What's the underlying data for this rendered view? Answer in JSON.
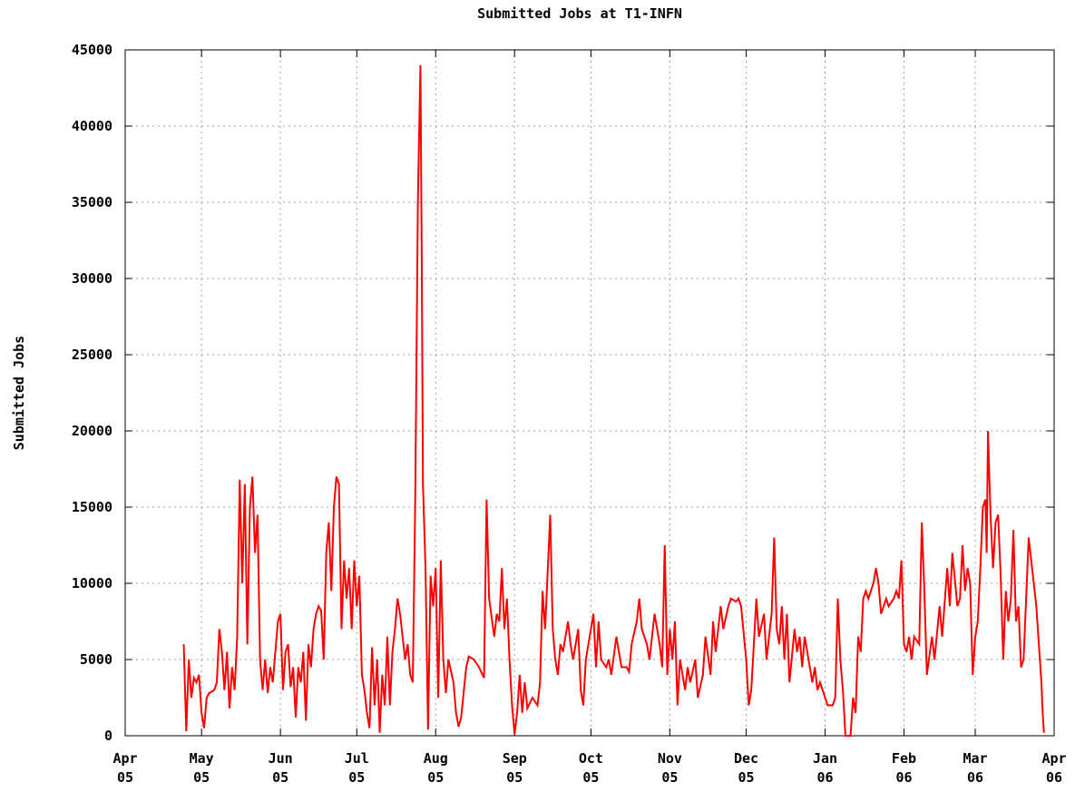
{
  "chart_data": {
    "type": "line",
    "title": "Submitted Jobs at T1-INFN",
    "y_label": "Submitted Jobs",
    "grid": true,
    "xlim": [
      0,
      365
    ],
    "xticks": [
      {
        "value": 0,
        "label": "Apr\n05"
      },
      {
        "value": 30,
        "label": "May\n05"
      },
      {
        "value": 61,
        "label": "Jun\n05"
      },
      {
        "value": 91,
        "label": "Jul\n05"
      },
      {
        "value": 122,
        "label": "Aug\n05"
      },
      {
        "value": 153,
        "label": "Sep\n05"
      },
      {
        "value": 183,
        "label": "Oct\n05"
      },
      {
        "value": 214,
        "label": "Nov\n05"
      },
      {
        "value": 244,
        "label": "Dec\n05"
      },
      {
        "value": 275,
        "label": "Jan\n06"
      },
      {
        "value": 306,
        "label": "Feb\n06"
      },
      {
        "value": 334,
        "label": "Mar\n06"
      },
      {
        "value": 365,
        "label": "Apr\n06"
      }
    ],
    "ylim": [
      0,
      45000
    ],
    "yticks": [
      0,
      5000,
      10000,
      15000,
      20000,
      25000,
      30000,
      35000,
      40000,
      45000
    ],
    "x": [
      23,
      24,
      25,
      26,
      27,
      28,
      29,
      30,
      31,
      32,
      33,
      35,
      36,
      37,
      38,
      39,
      40,
      41,
      42,
      43,
      44,
      45,
      46,
      47,
      48,
      49,
      50,
      51,
      52,
      53,
      54,
      55,
      56,
      57,
      58,
      59,
      60,
      61,
      62,
      63,
      64,
      65,
      66,
      67,
      68,
      69,
      70,
      71,
      72,
      73,
      74,
      75,
      76,
      77,
      78,
      79,
      80,
      81,
      82,
      83,
      84,
      85,
      86,
      87,
      88,
      89,
      90,
      91,
      92,
      93,
      94,
      95,
      96,
      97,
      98,
      99,
      100,
      101,
      102,
      103,
      104,
      105,
      106,
      107,
      108,
      110,
      111,
      112,
      113,
      114,
      115,
      116,
      116.5,
      117,
      118,
      119,
      120,
      121,
      122,
      123,
      124,
      125,
      126,
      127,
      129,
      130,
      131,
      132,
      134,
      135,
      137,
      139,
      141,
      142,
      143,
      145,
      146,
      147,
      148,
      149,
      150,
      151,
      152,
      153,
      154,
      155,
      156,
      157,
      158,
      160,
      162,
      163,
      164,
      165,
      167,
      168,
      169,
      170,
      171,
      172,
      174,
      175,
      176,
      178,
      179,
      180,
      181,
      182,
      184,
      185,
      186,
      187,
      189,
      190,
      191,
      193,
      194,
      195,
      197,
      198,
      199,
      201,
      202,
      203,
      205,
      206,
      208,
      210,
      211,
      212,
      213,
      214,
      215,
      216,
      217,
      218,
      220,
      221,
      222,
      224,
      225,
      227,
      228,
      230,
      231,
      232,
      234,
      235,
      237,
      238,
      240,
      241,
      242,
      244,
      245,
      246,
      248,
      249,
      251,
      252,
      254,
      255,
      256,
      257,
      258,
      259,
      260,
      261,
      263,
      264,
      265,
      266,
      267,
      268,
      270,
      271,
      272,
      273,
      275,
      276,
      278,
      279,
      280,
      281,
      282,
      283,
      285,
      286,
      287,
      288,
      289,
      290,
      291,
      292,
      294,
      295,
      296,
      297,
      299,
      300,
      302,
      303,
      304,
      305,
      306,
      307,
      308,
      309,
      310,
      312,
      313,
      314,
      315,
      317,
      318,
      320,
      321,
      323,
      324,
      325,
      327,
      328,
      329,
      330,
      331,
      332,
      333,
      334,
      335,
      336,
      337,
      338,
      338.5,
      339,
      340,
      341,
      342,
      343,
      344,
      345,
      346,
      347,
      348,
      349,
      350,
      351,
      352,
      353,
      355,
      356,
      358,
      359,
      360,
      360.5,
      361
    ],
    "series": [
      {
        "name": "Submitted Jobs",
        "color": "#ff0000",
        "values": [
          6000,
          300,
          5000,
          2500,
          3800,
          3500,
          4000,
          1500,
          500,
          2500,
          2800,
          3000,
          3500,
          7000,
          5500,
          3000,
          5500,
          1800,
          4500,
          3000,
          6500,
          16800,
          10000,
          16500,
          6000,
          15000,
          17000,
          12000,
          14500,
          5000,
          3000,
          5000,
          2800,
          4500,
          3500,
          5500,
          7500,
          8000,
          3000,
          5500,
          6000,
          3200,
          4500,
          1200,
          4500,
          3500,
          5500,
          1000,
          6000,
          4500,
          7000,
          8000,
          8500,
          8200,
          5000,
          12000,
          14000,
          9500,
          15000,
          17000,
          16500,
          7000,
          11500,
          9000,
          11000,
          7000,
          11500,
          8500,
          10500,
          4000,
          3000,
          1500,
          500,
          5800,
          2000,
          5000,
          200,
          4000,
          2000,
          6500,
          2000,
          5500,
          7000,
          9000,
          8000,
          5000,
          6000,
          4000,
          3500,
          16000,
          35000,
          44000,
          32000,
          16500,
          11000,
          400,
          10500,
          8500,
          11000,
          2500,
          11500,
          5000,
          2800,
          5000,
          3500,
          1500,
          600,
          1200,
          4500,
          5200,
          5000,
          4500,
          3800,
          15500,
          9000,
          6500,
          8000,
          7500,
          11000,
          7000,
          9000,
          5000,
          2000,
          100,
          1500,
          4000,
          1500,
          3500,
          1800,
          2500,
          2000,
          3500,
          9500,
          7000,
          14500,
          7000,
          5000,
          4000,
          6000,
          5500,
          7500,
          6000,
          5000,
          7000,
          3000,
          2000,
          5000,
          6000,
          8000,
          4500,
          7500,
          5000,
          4500,
          5000,
          4000,
          6500,
          5500,
          4500,
          4500,
          4200,
          6000,
          7500,
          9000,
          7000,
          6000,
          5000,
          8000,
          6000,
          4500,
          12500,
          4000,
          7000,
          5000,
          7500,
          2000,
          5000,
          3000,
          4500,
          3500,
          5000,
          2500,
          4000,
          6500,
          4000,
          7500,
          5500,
          8500,
          7000,
          8500,
          9000,
          8800,
          9000,
          8500,
          5000,
          2000,
          3000,
          9000,
          6500,
          8000,
          5000,
          8000,
          13000,
          7000,
          6000,
          8500,
          5000,
          8000,
          3500,
          7000,
          5500,
          6500,
          4500,
          6500,
          5500,
          3500,
          4500,
          3000,
          3500,
          2500,
          2000,
          2000,
          2500,
          9000,
          5000,
          3000,
          0,
          0,
          2500,
          1500,
          6500,
          5500,
          9000,
          9500,
          9000,
          10000,
          11000,
          10000,
          8000,
          9000,
          8500,
          9000,
          9500,
          9000,
          11500,
          6000,
          5500,
          6500,
          5000,
          6500,
          6000,
          14000,
          9500,
          4000,
          6500,
          5000,
          8500,
          6500,
          11000,
          8500,
          12000,
          8500,
          9000,
          12500,
          9500,
          11000,
          10000,
          4000,
          6500,
          7500,
          11000,
          15000,
          15500,
          12000,
          20000,
          14500,
          11000,
          14000,
          14500,
          10500,
          5000,
          9500,
          7500,
          9000,
          13500,
          7500,
          8500,
          4500,
          5000,
          13000,
          11500,
          8500,
          6000,
          3500,
          1500,
          200
        ]
      }
    ]
  }
}
